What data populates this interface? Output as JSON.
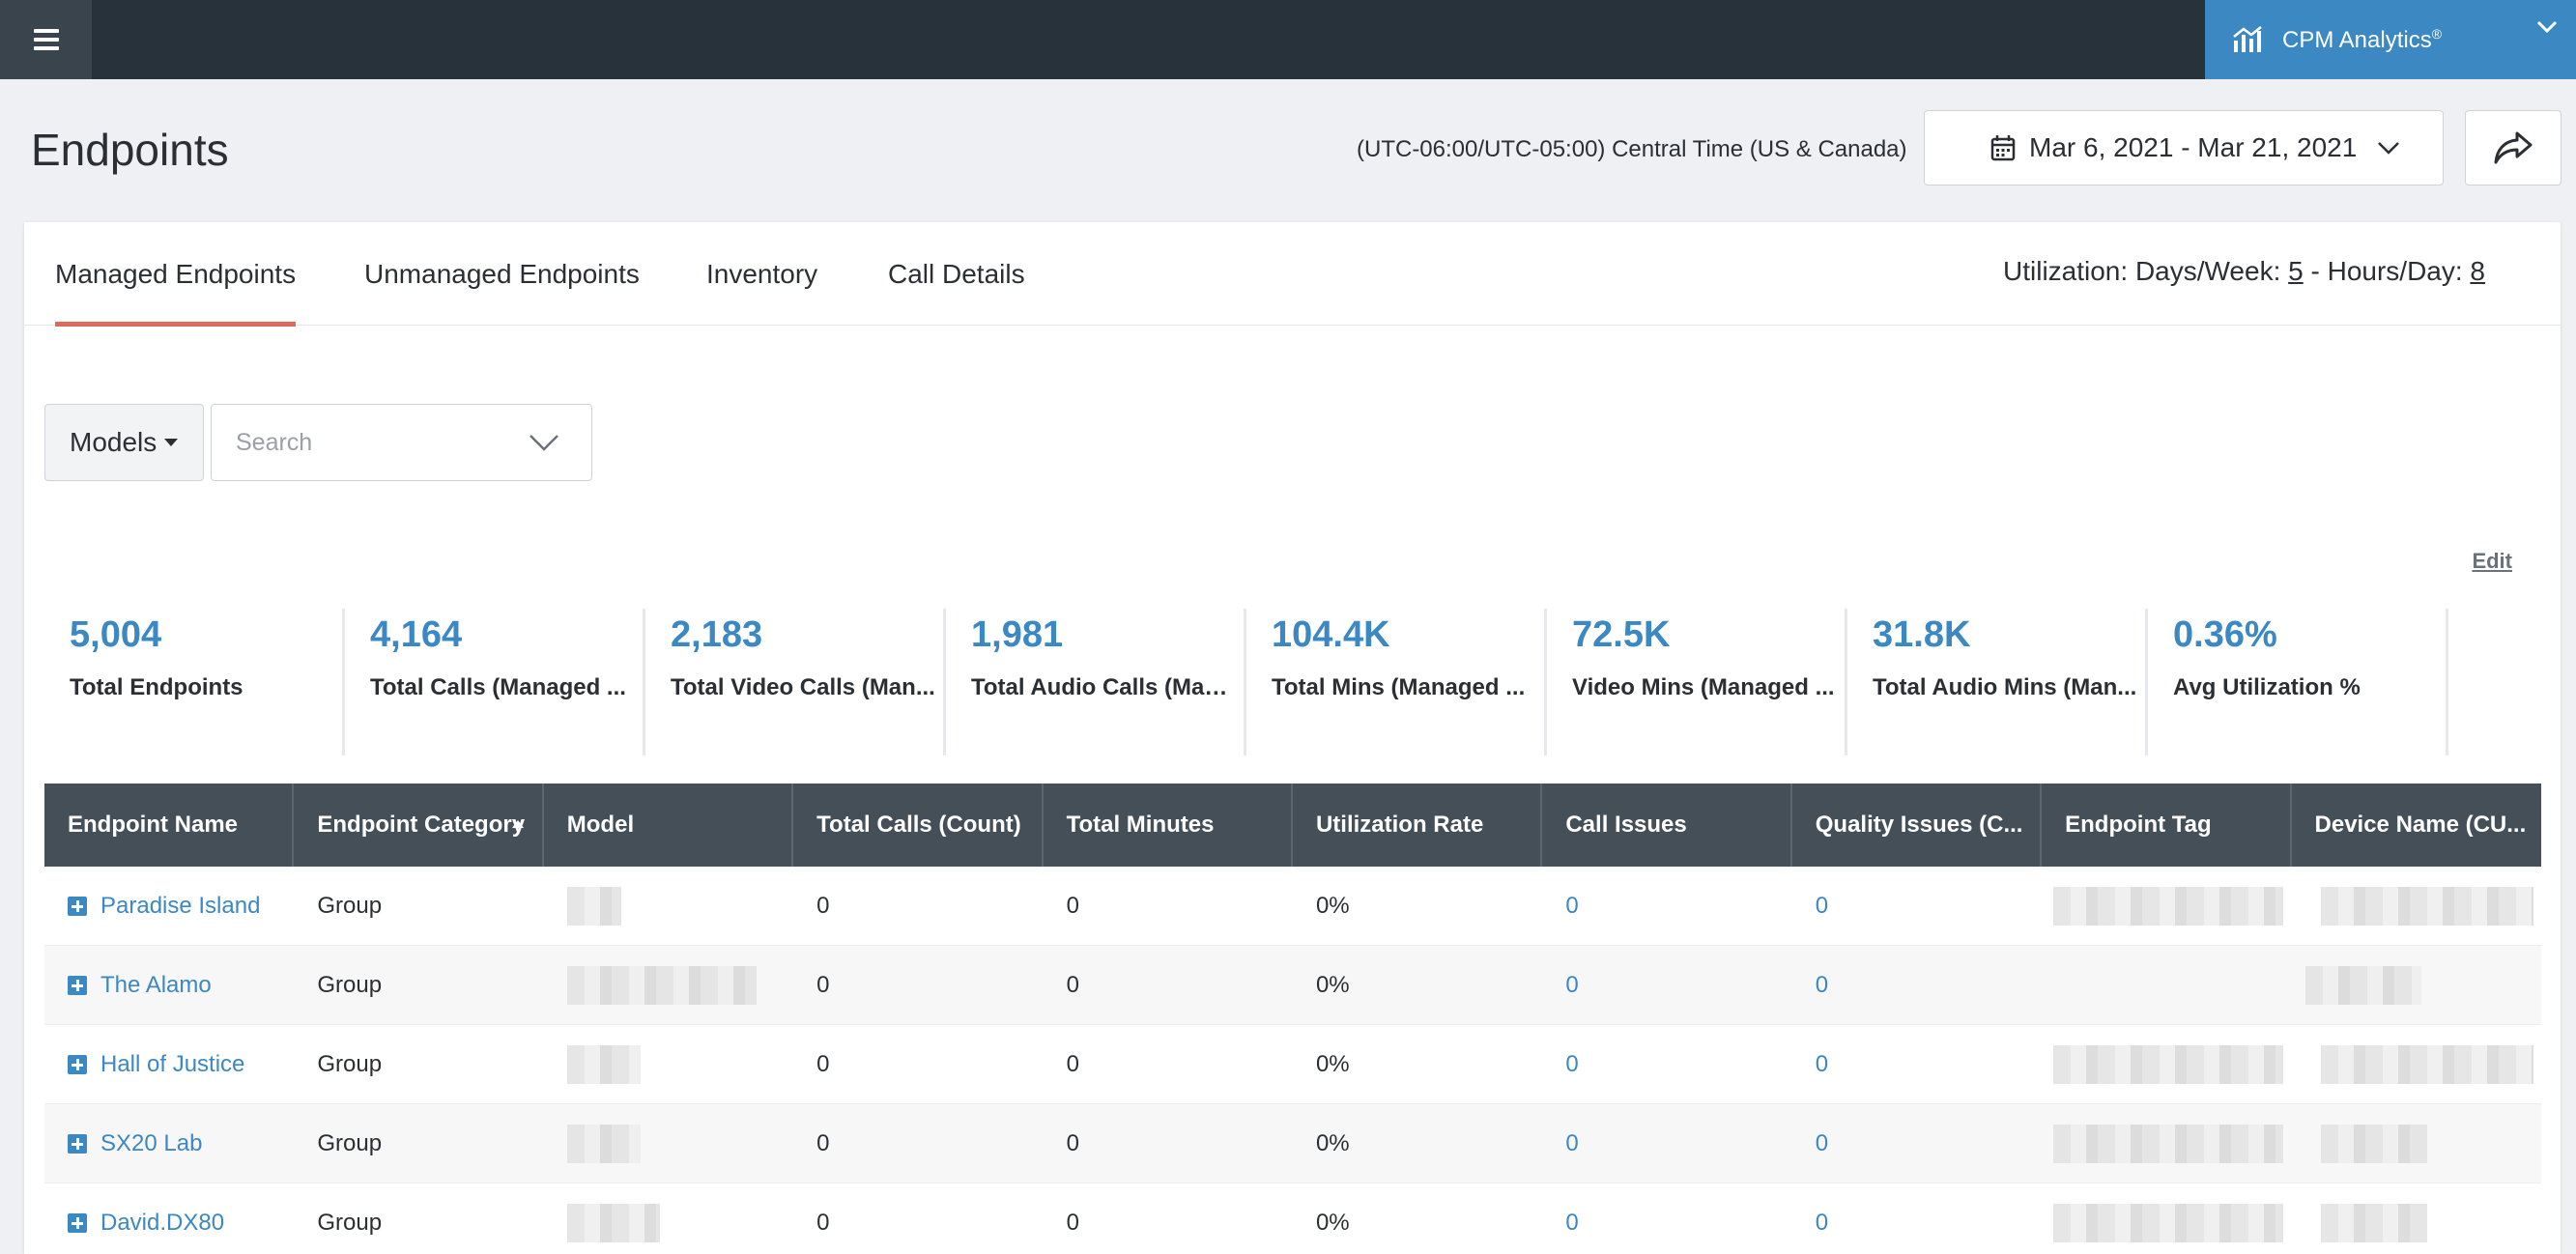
{
  "app": {
    "name": "CPM Analytics",
    "trademark": "®",
    "brand_color": "#3b88c3",
    "topbar_color": "#28323b"
  },
  "icons": {
    "menu": "hamburger-icon",
    "app": "bar-chart-icon",
    "app_dropdown": "chevron-down-icon",
    "calendar": "calendar-icon",
    "date_dropdown": "chevron-down-icon",
    "share": "share-arrow-icon",
    "search_dropdown": "chevron-down-icon",
    "expand_row": "plus-square-icon"
  },
  "header": {
    "title": "Endpoints",
    "timezone": "(UTC-06:00/UTC-05:00) Central Time (US & Canada)",
    "date_range": "Mar 6, 2021 - Mar 21, 2021"
  },
  "tabs": [
    {
      "label": "Managed Endpoints",
      "active": true
    },
    {
      "label": "Unmanaged Endpoints",
      "active": false
    },
    {
      "label": "Inventory",
      "active": false
    },
    {
      "label": "Call Details",
      "active": false
    }
  ],
  "utilization": {
    "prefix": "Utilization: Days/Week: ",
    "days": "5",
    "separator": " - Hours/Day: ",
    "hours": "8"
  },
  "filters": {
    "models_label": "Models",
    "search_placeholder": "Search"
  },
  "edit_label": "Edit",
  "stats": [
    {
      "value": "5,004",
      "label": "Total Endpoints"
    },
    {
      "value": "4,164",
      "label": "Total Calls (Managed ..."
    },
    {
      "value": "2,183",
      "label": "Total Video Calls (Man..."
    },
    {
      "value": "1,981",
      "label": "Total Audio Calls (Man..."
    },
    {
      "value": "104.4K",
      "label": "Total Mins (Managed ..."
    },
    {
      "value": "72.5K",
      "label": "Video Mins (Managed ..."
    },
    {
      "value": "31.8K",
      "label": "Total Audio Mins (Man..."
    },
    {
      "value": "0.36%",
      "label": "Avg Utilization %"
    }
  ],
  "table": {
    "columns": [
      "Endpoint Name",
      "Endpoint Category",
      "Model",
      "Total Calls (Count)",
      "Total Minutes",
      "Utilization Rate",
      "Call Issues",
      "Quality Issues (C...",
      "Endpoint Tag",
      "Device Name (CU..."
    ],
    "sorted_column": "Endpoint Category",
    "sort_direction": "ascending",
    "rows": [
      {
        "name": "Paradise Island",
        "category": "Group",
        "total_calls": "0",
        "total_minutes": "0",
        "utilization": "0%",
        "call_issues": "0",
        "quality_issues": "0"
      },
      {
        "name": "The Alamo",
        "category": "Group",
        "total_calls": "0",
        "total_minutes": "0",
        "utilization": "0%",
        "call_issues": "0",
        "quality_issues": "0"
      },
      {
        "name": "Hall of Justice",
        "category": "Group",
        "total_calls": "0",
        "total_minutes": "0",
        "utilization": "0%",
        "call_issues": "0",
        "quality_issues": "0"
      },
      {
        "name": "SX20 Lab",
        "category": "Group",
        "total_calls": "0",
        "total_minutes": "0",
        "utilization": "0%",
        "call_issues": "0",
        "quality_issues": "0"
      },
      {
        "name": "David.DX80",
        "category": "Group",
        "total_calls": "0",
        "total_minutes": "0",
        "utilization": "0%",
        "call_issues": "0",
        "quality_issues": "0"
      }
    ]
  }
}
